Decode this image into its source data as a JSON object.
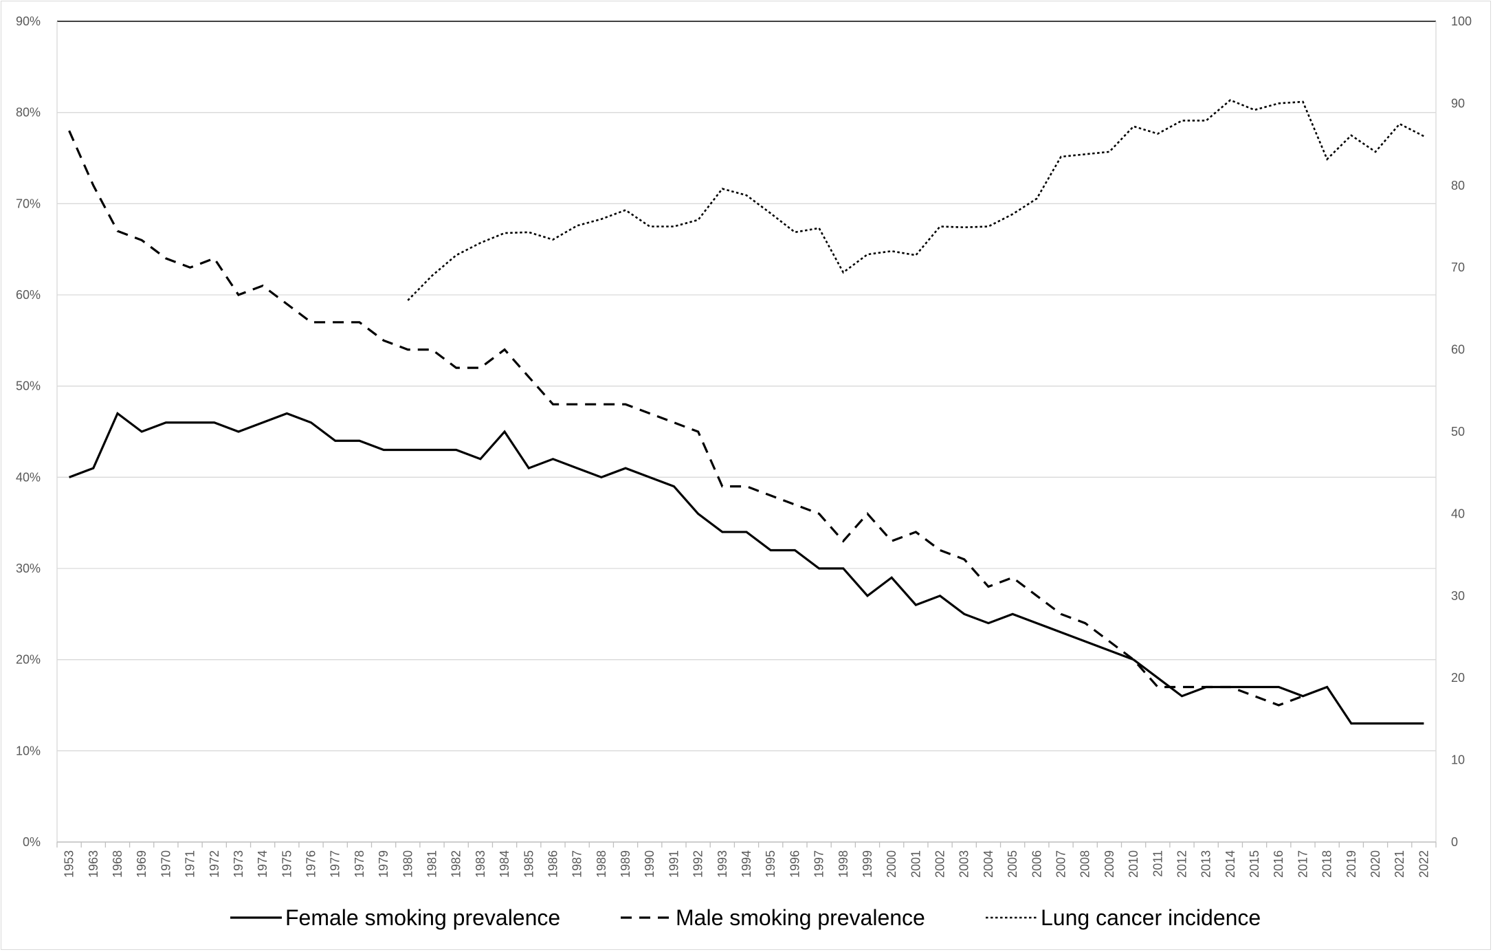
{
  "chart_data": {
    "type": "line",
    "title": "",
    "xlabel": "",
    "ylabel": "",
    "y2label": "",
    "grid": true,
    "legend_position": "bottom",
    "categories": [
      "1953",
      "1963",
      "1968",
      "1969",
      "1970",
      "1971",
      "1972",
      "1973",
      "1974",
      "1975",
      "1976",
      "1977",
      "1978",
      "1979",
      "1980",
      "1981",
      "1982",
      "1983",
      "1984",
      "1985",
      "1986",
      "1987",
      "1988",
      "1989",
      "1990",
      "1991",
      "1992",
      "1993",
      "1994",
      "1995",
      "1996",
      "1997",
      "1998",
      "1999",
      "2000",
      "2001",
      "2002",
      "2003",
      "2004",
      "2005",
      "2006",
      "2007",
      "2008",
      "2009",
      "2010",
      "2011",
      "2012",
      "2013",
      "2014",
      "2015",
      "2016",
      "2017",
      "2018",
      "2019",
      "2020",
      "2021",
      "2022"
    ],
    "y_axis": {
      "ylim": [
        0,
        90
      ],
      "ticks": [
        0,
        10,
        20,
        30,
        40,
        50,
        60,
        70,
        80,
        90
      ],
      "tick_labels": [
        "0%",
        "10%",
        "20%",
        "30%",
        "40%",
        "50%",
        "60%",
        "70%",
        "80%",
        "90%"
      ]
    },
    "y2_axis": {
      "ylim": [
        0,
        100
      ],
      "ticks": [
        0,
        10,
        20,
        30,
        40,
        50,
        60,
        70,
        80,
        90,
        100
      ],
      "tick_labels": [
        "0",
        "10",
        "20",
        "30",
        "40",
        "50",
        "60",
        "70",
        "80",
        "90",
        "100"
      ]
    },
    "series": [
      {
        "name": "Female smoking prevalence",
        "axis": "left",
        "style": "solid",
        "color": "#000000",
        "values": [
          40,
          41,
          47,
          45,
          46,
          46,
          46,
          45,
          46,
          47,
          46,
          44,
          44,
          43,
          43,
          43,
          43,
          42,
          45,
          41,
          42,
          41,
          40,
          41,
          40,
          39,
          36,
          34,
          34,
          32,
          32,
          30,
          30,
          27,
          29,
          26,
          27,
          25,
          24,
          25,
          24,
          23,
          22,
          21,
          20,
          18,
          16,
          17,
          17,
          17,
          17,
          16,
          17,
          13,
          13,
          13,
          13
        ]
      },
      {
        "name": "Male smoking prevalence",
        "axis": "left",
        "style": "dashed",
        "color": "#000000",
        "values": [
          78,
          72,
          67,
          66,
          64,
          63,
          64,
          60,
          61,
          59,
          57,
          57,
          57,
          55,
          54,
          54,
          52,
          52,
          54,
          51,
          48,
          48,
          48,
          48,
          47,
          46,
          45,
          39,
          39,
          38,
          37,
          36,
          33,
          36,
          33,
          34,
          32,
          31,
          28,
          29,
          27,
          25,
          24,
          22,
          20,
          17,
          17,
          17,
          17,
          16,
          15,
          16,
          null,
          null,
          null,
          null,
          null
        ]
      },
      {
        "name": "Lung cancer incidence",
        "axis": "right",
        "style": "dotted",
        "color": "#000000",
        "values": [
          null,
          null,
          null,
          null,
          null,
          null,
          null,
          null,
          null,
          null,
          null,
          null,
          null,
          null,
          66,
          69,
          71.5,
          73,
          74.2,
          74.3,
          73.4,
          75.1,
          75.9,
          77,
          75,
          75,
          75.8,
          79.6,
          78.8,
          76.6,
          74.3,
          74.8,
          69.4,
          71.6,
          72,
          71.5,
          75,
          74.9,
          75,
          76.5,
          78.4,
          83.5,
          83.8,
          84.1,
          87.2,
          86.3,
          87.9,
          87.9,
          90.4,
          89.2,
          90,
          90.2,
          83.2,
          86.1,
          84.1,
          87.5,
          86
        ]
      }
    ]
  }
}
